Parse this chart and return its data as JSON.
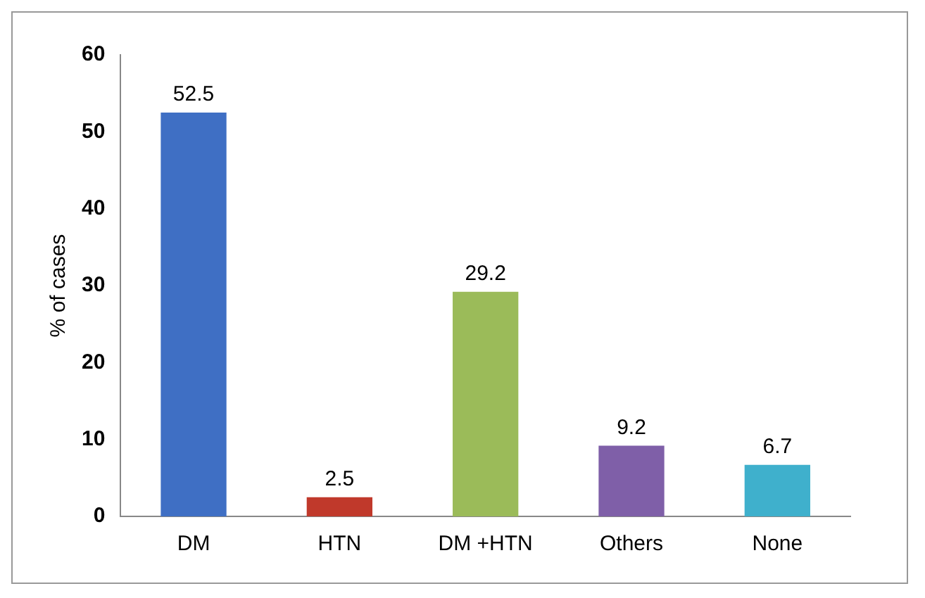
{
  "chart_data": {
    "type": "bar",
    "ylabel": "% of cases",
    "categories": [
      "DM",
      "HTN",
      "DM +HTN",
      "Others",
      "None"
    ],
    "values": [
      52.5,
      2.5,
      29.2,
      9.2,
      6.7
    ],
    "colors": [
      "#3f6fc4",
      "#c0392b",
      "#9bbb59",
      "#7f5fa8",
      "#3fb0cc"
    ],
    "ylim": [
      0,
      60
    ],
    "yticks": [
      0,
      10,
      20,
      30,
      40,
      50,
      60
    ],
    "grid": false,
    "legend": false,
    "data_labels": true
  }
}
